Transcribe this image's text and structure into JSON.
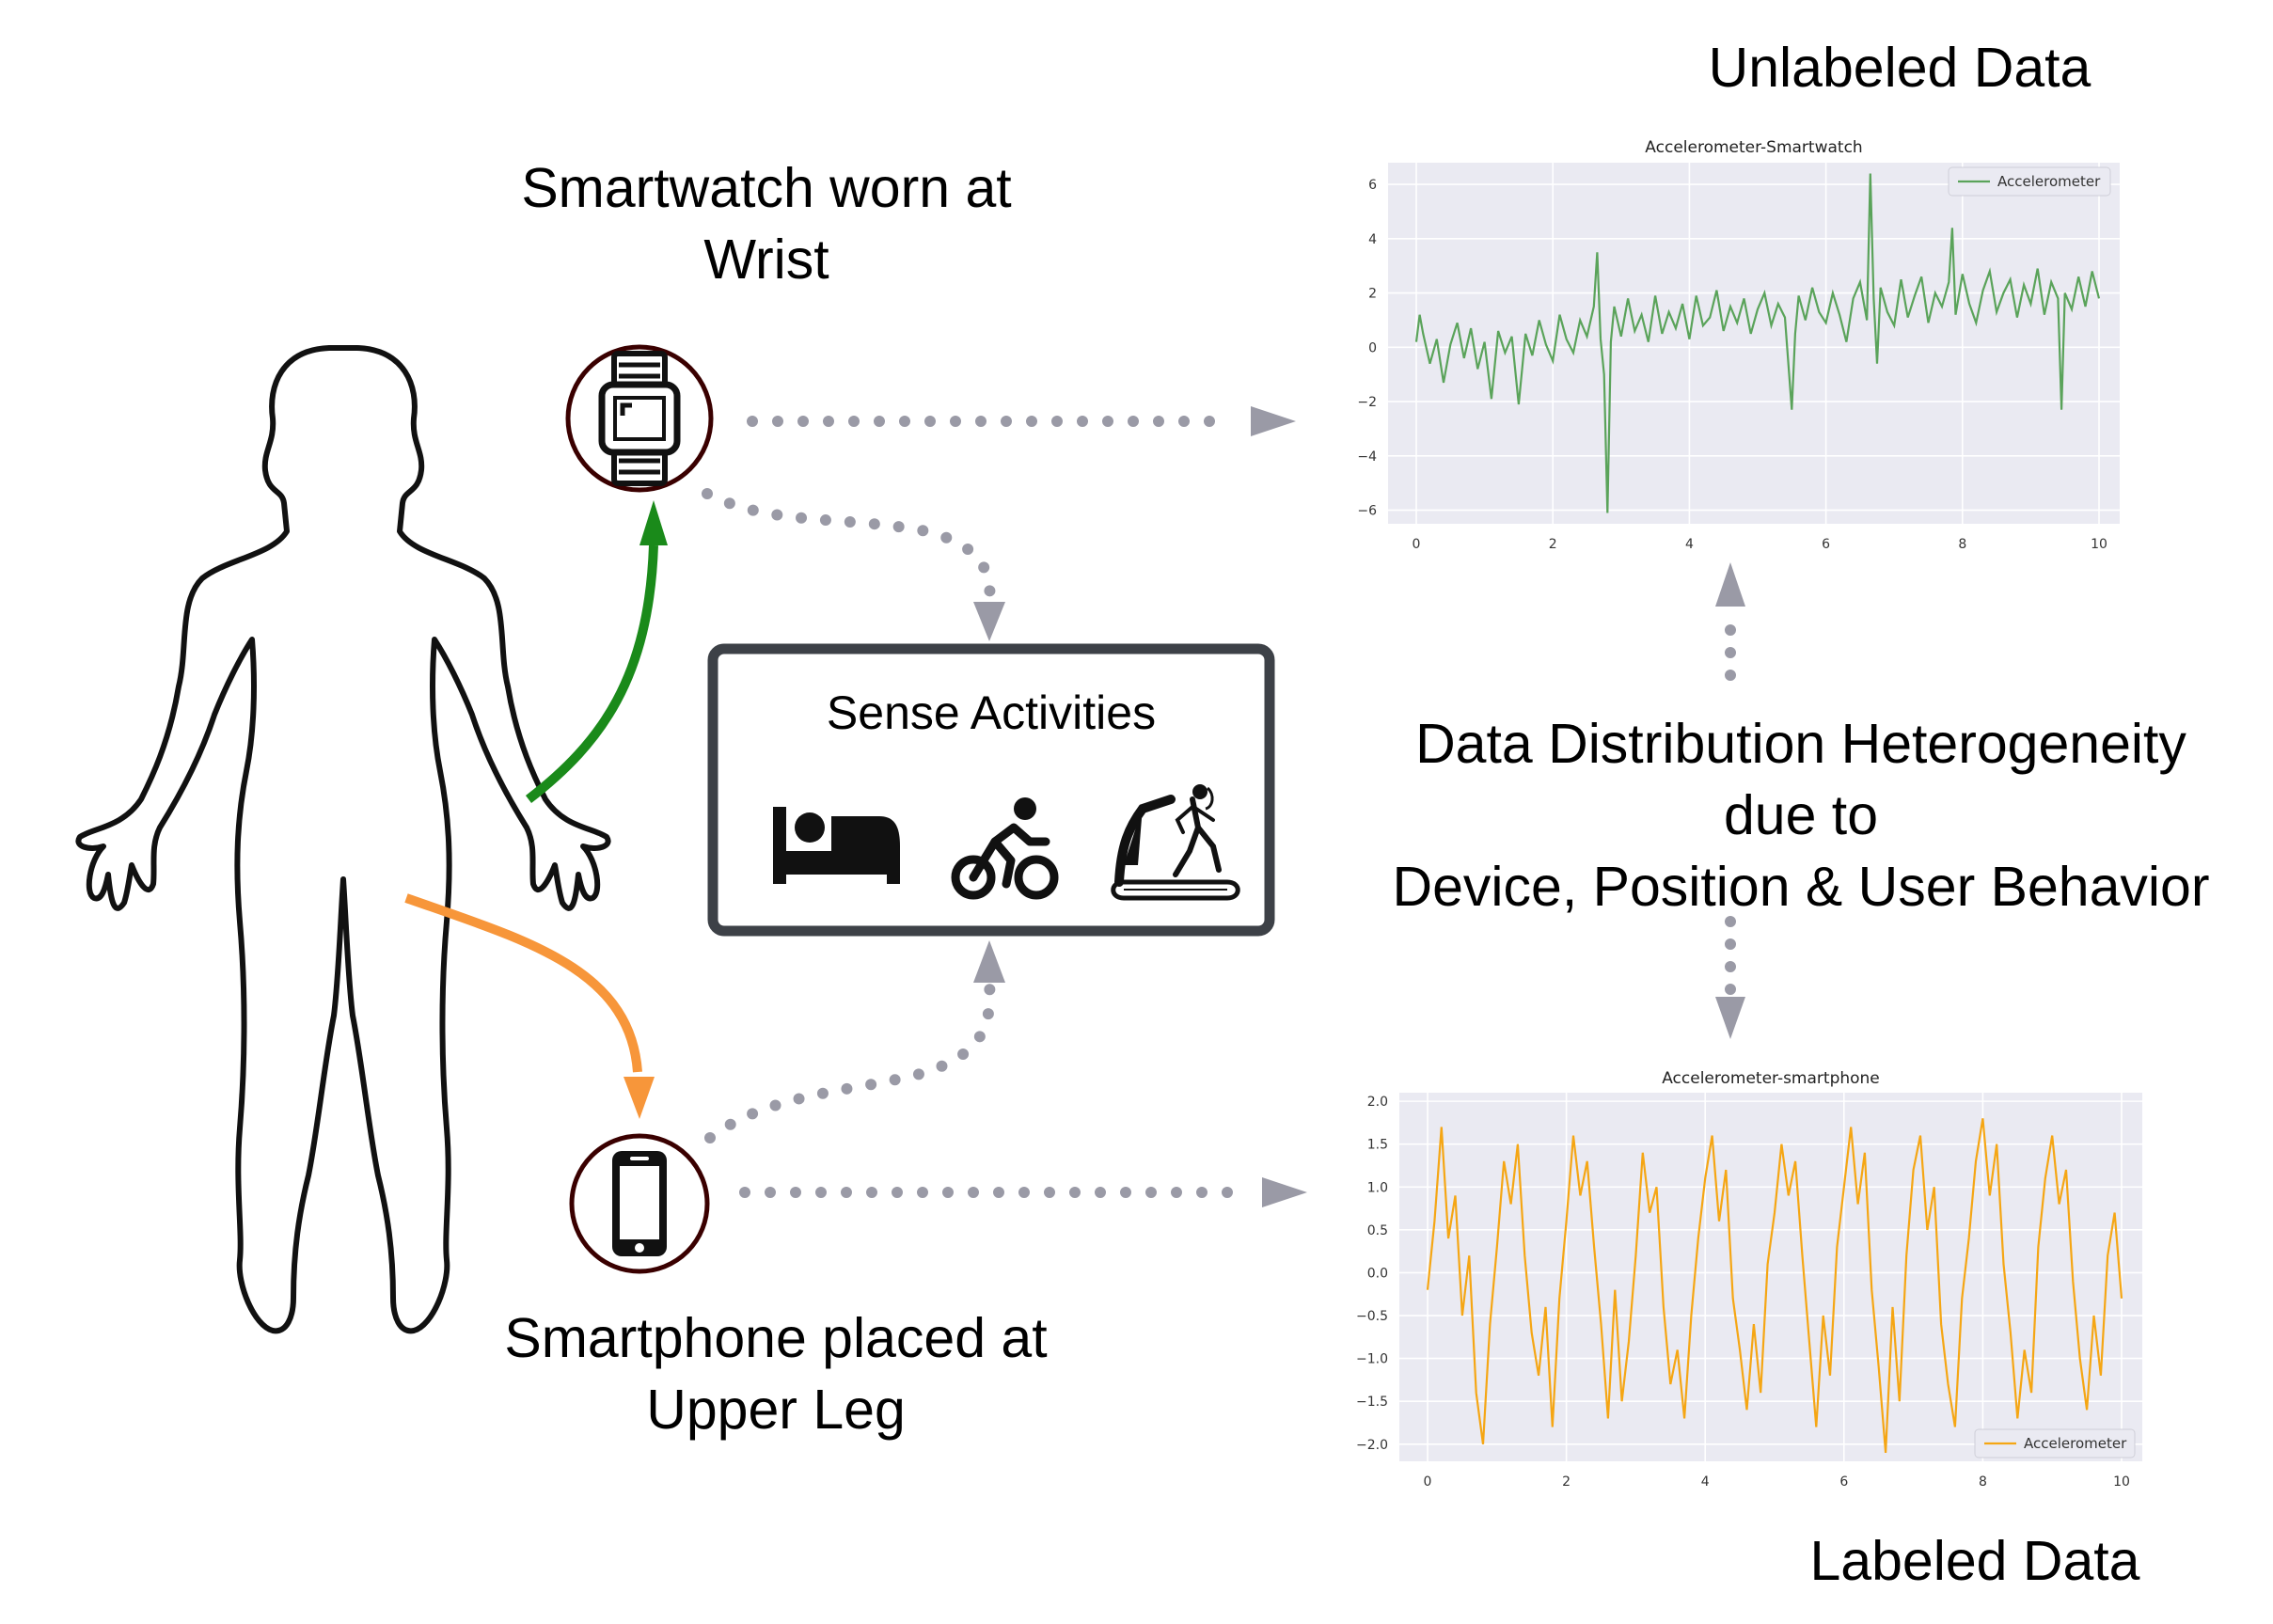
{
  "labels": {
    "smartwatch": [
      "Smartwatch worn at",
      "Wrist"
    ],
    "smartphone": [
      "Smartphone placed at",
      "Upper Leg"
    ],
    "unlabeled": "Unlabeled Data",
    "labeled": "Labeled Data",
    "heterogeneity": [
      "Data Distribution Heterogeneity",
      "due to",
      "Device, Position & User Behavior"
    ],
    "sense": "Sense Activities"
  },
  "icons": {
    "watch": "smartwatch-icon",
    "phone": "smartphone-icon",
    "activities": [
      "bed-icon",
      "cycling-icon",
      "treadmill-icon"
    ],
    "body": "human-body-outline"
  },
  "colors": {
    "green_arrow": "#1a8a1a",
    "orange_arrow": "#f7963a",
    "dots": "#9a9aa6",
    "ring": "#3a0000",
    "plot_bg": "#eaeaf2",
    "watch_line": "#5aa35a",
    "phone_line": "#f5a614"
  },
  "chart_data": [
    {
      "type": "line",
      "title": "Accelerometer-Smartwatch",
      "legend": "Accelerometer",
      "legend_position": "top-right",
      "xlim": [
        0,
        10
      ],
      "ylim": [
        -6.5,
        6.8
      ],
      "xticks": [
        0,
        2,
        4,
        6,
        8,
        10
      ],
      "yticks": [
        6,
        4,
        2,
        0,
        -2,
        -4,
        -6
      ],
      "grid": true,
      "series": [
        {
          "name": "Accelerometer",
          "x": [
            0.0,
            0.05,
            0.1,
            0.2,
            0.3,
            0.4,
            0.5,
            0.6,
            0.7,
            0.8,
            0.9,
            1.0,
            1.1,
            1.2,
            1.3,
            1.4,
            1.5,
            1.6,
            1.7,
            1.8,
            1.9,
            2.0,
            2.1,
            2.2,
            2.3,
            2.4,
            2.5,
            2.6,
            2.65,
            2.7,
            2.75,
            2.8,
            2.85,
            2.9,
            3.0,
            3.1,
            3.2,
            3.3,
            3.4,
            3.5,
            3.6,
            3.7,
            3.8,
            3.9,
            4.0,
            4.1,
            4.2,
            4.3,
            4.4,
            4.5,
            4.6,
            4.7,
            4.8,
            4.9,
            5.0,
            5.1,
            5.2,
            5.3,
            5.4,
            5.5,
            5.55,
            5.6,
            5.7,
            5.8,
            5.9,
            6.0,
            6.1,
            6.2,
            6.3,
            6.4,
            6.5,
            6.6,
            6.65,
            6.7,
            6.75,
            6.8,
            6.9,
            7.0,
            7.1,
            7.2,
            7.3,
            7.4,
            7.5,
            7.6,
            7.7,
            7.8,
            7.85,
            7.9,
            8.0,
            8.1,
            8.2,
            8.3,
            8.4,
            8.5,
            8.6,
            8.7,
            8.8,
            8.9,
            9.0,
            9.1,
            9.2,
            9.3,
            9.4,
            9.45,
            9.5,
            9.6,
            9.7,
            9.8,
            9.9,
            10.0
          ],
          "y": [
            0.2,
            1.2,
            0.5,
            -0.6,
            0.3,
            -1.3,
            0.1,
            0.9,
            -0.4,
            0.7,
            -0.8,
            0.2,
            -1.9,
            0.6,
            -0.2,
            0.4,
            -2.1,
            0.5,
            -0.3,
            1.0,
            0.1,
            -0.5,
            1.2,
            0.3,
            -0.2,
            1.0,
            0.4,
            1.5,
            3.5,
            0.3,
            -1.0,
            -6.1,
            0.2,
            1.5,
            0.4,
            1.8,
            0.6,
            1.2,
            0.2,
            1.9,
            0.5,
            1.3,
            0.7,
            1.6,
            0.3,
            1.9,
            0.8,
            1.1,
            2.1,
            0.6,
            1.5,
            0.9,
            1.8,
            0.5,
            1.4,
            2.0,
            0.8,
            1.6,
            1.1,
            -2.3,
            0.5,
            1.9,
            1.0,
            2.2,
            1.3,
            0.9,
            2.0,
            1.2,
            0.2,
            1.8,
            2.4,
            1.0,
            6.4,
            1.8,
            -0.6,
            2.2,
            1.3,
            0.8,
            2.5,
            1.1,
            1.9,
            2.6,
            0.9,
            2.0,
            1.5,
            2.4,
            4.4,
            1.2,
            2.7,
            1.6,
            0.9,
            2.1,
            2.8,
            1.3,
            2.0,
            2.5,
            1.1,
            2.3,
            1.6,
            2.9,
            1.2,
            2.4,
            1.8,
            -2.3,
            2.0,
            1.4,
            2.6,
            1.5,
            2.8,
            1.8
          ]
        }
      ]
    },
    {
      "type": "line",
      "title": "Accelerometer-smartphone",
      "legend": "Accelerometer",
      "legend_position": "bottom-right",
      "xlim": [
        0,
        10
      ],
      "ylim": [
        -2.2,
        2.1
      ],
      "xticks": [
        0,
        2,
        4,
        6,
        8,
        10
      ],
      "yticks": [
        2.0,
        1.5,
        1.0,
        0.5,
        0.0,
        -0.5,
        -1.0,
        -1.5,
        -2.0
      ],
      "grid": true,
      "series": [
        {
          "name": "Accelerometer",
          "x": [
            0.0,
            0.1,
            0.2,
            0.3,
            0.4,
            0.5,
            0.6,
            0.7,
            0.8,
            0.9,
            1.0,
            1.1,
            1.2,
            1.3,
            1.4,
            1.5,
            1.6,
            1.7,
            1.8,
            1.9,
            2.0,
            2.1,
            2.2,
            2.3,
            2.4,
            2.5,
            2.6,
            2.7,
            2.8,
            2.9,
            3.0,
            3.1,
            3.2,
            3.3,
            3.4,
            3.5,
            3.6,
            3.7,
            3.8,
            3.9,
            4.0,
            4.1,
            4.2,
            4.3,
            4.4,
            4.5,
            4.6,
            4.7,
            4.8,
            4.9,
            5.0,
            5.1,
            5.2,
            5.3,
            5.4,
            5.5,
            5.6,
            5.7,
            5.8,
            5.9,
            6.0,
            6.1,
            6.2,
            6.3,
            6.4,
            6.5,
            6.6,
            6.7,
            6.8,
            6.9,
            7.0,
            7.1,
            7.2,
            7.3,
            7.4,
            7.5,
            7.6,
            7.7,
            7.8,
            7.9,
            8.0,
            8.1,
            8.2,
            8.3,
            8.4,
            8.5,
            8.6,
            8.7,
            8.8,
            8.9,
            9.0,
            9.1,
            9.2,
            9.3,
            9.4,
            9.5,
            9.6,
            9.7,
            9.8,
            9.9,
            10.0
          ],
          "y": [
            -0.2,
            0.6,
            1.7,
            0.4,
            0.9,
            -0.5,
            0.2,
            -1.4,
            -2.0,
            -0.6,
            0.3,
            1.3,
            0.8,
            1.5,
            0.2,
            -0.7,
            -1.2,
            -0.4,
            -1.8,
            -0.3,
            0.6,
            1.6,
            0.9,
            1.3,
            0.3,
            -0.6,
            -1.7,
            -0.2,
            -1.5,
            -0.8,
            0.2,
            1.4,
            0.7,
            1.0,
            -0.4,
            -1.3,
            -0.9,
            -1.7,
            -0.5,
            0.4,
            1.1,
            1.6,
            0.6,
            1.2,
            -0.3,
            -0.9,
            -1.6,
            -0.6,
            -1.4,
            0.1,
            0.7,
            1.5,
            0.9,
            1.3,
            0.2,
            -0.8,
            -1.8,
            -0.5,
            -1.2,
            0.3,
            1.0,
            1.7,
            0.8,
            1.4,
            -0.2,
            -1.1,
            -2.1,
            -0.4,
            -1.5,
            0.2,
            1.2,
            1.6,
            0.5,
            1.0,
            -0.6,
            -1.3,
            -1.8,
            -0.3,
            0.4,
            1.3,
            1.8,
            0.9,
            1.5,
            0.1,
            -0.7,
            -1.7,
            -0.9,
            -1.4,
            0.3,
            1.1,
            1.6,
            0.8,
            1.2,
            -0.1,
            -1.0,
            -1.6,
            -0.5,
            -1.2,
            0.2,
            0.7,
            -0.3
          ]
        }
      ]
    }
  ]
}
